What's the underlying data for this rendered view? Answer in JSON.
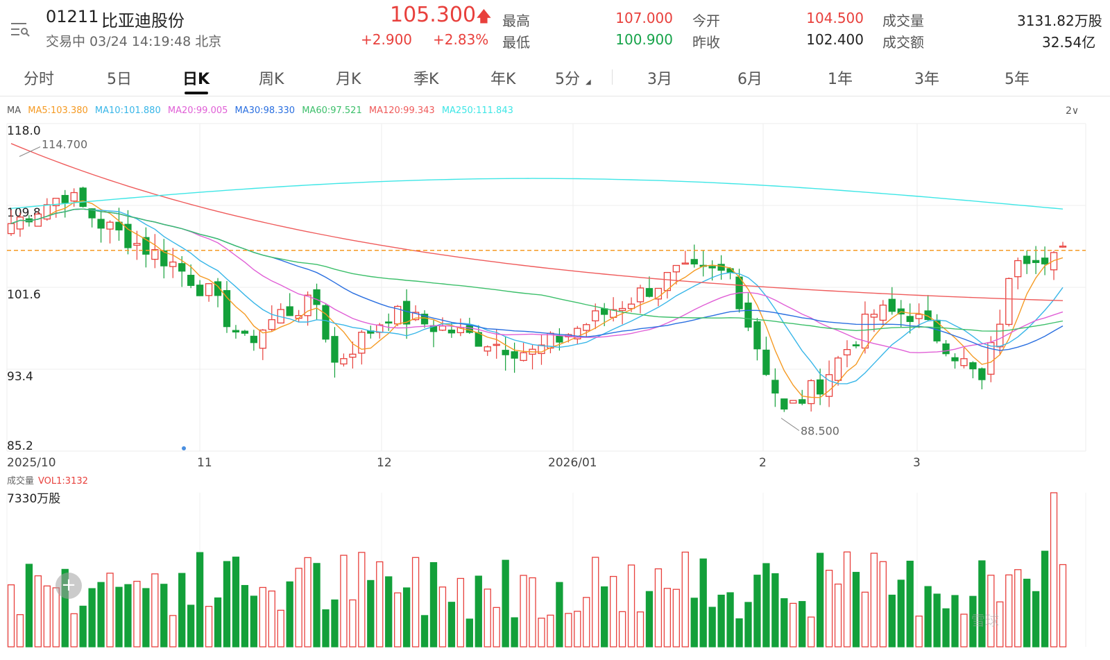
{
  "stock": {
    "code": "01211",
    "name": "比亚迪股份",
    "status": "交易中 03/24 14:19:48 北京",
    "price": "105.300",
    "change": "+2.900",
    "change_pct": "+2.83%"
  },
  "quote": {
    "high_label": "最高",
    "high": "107.000",
    "low_label": "最低",
    "low": "100.900",
    "open_label": "今开",
    "open": "104.500",
    "prev_label": "昨收",
    "prev": "102.400",
    "volume_label": "成交量",
    "volume": "3131.82万股",
    "amount_label": "成交额",
    "amount": "32.54亿"
  },
  "tabs": [
    "分时",
    "5日",
    "日K",
    "周K",
    "月K",
    "季K",
    "年K",
    "5分",
    "3月",
    "6月",
    "1年",
    "3年",
    "5年"
  ],
  "active_tab": "日K",
  "ma_legend": {
    "title": "MA",
    "items": [
      {
        "label": "MA5:103.380",
        "color": "#f59a23"
      },
      {
        "label": "MA10:101.880",
        "color": "#38b6e8"
      },
      {
        "label": "MA20:99.005",
        "color": "#e05fd6"
      },
      {
        "label": "MA30:98.330",
        "color": "#2a6fe0"
      },
      {
        "label": "MA60:97.521",
        "color": "#3cbf6a"
      },
      {
        "label": "MA120:99.343",
        "color": "#ef5b5b"
      },
      {
        "label": "MA250:111.843",
        "color": "#3ee6e6"
      }
    ],
    "settings": "2∨"
  },
  "chart_data": {
    "type": "candlestick",
    "y_axis": {
      "ticks": [
        "118.0",
        "109.8",
        "101.6",
        "93.4",
        "85.2"
      ],
      "range": [
        85.2,
        118.0
      ]
    },
    "x_axis": {
      "ticks": [
        "2025/10",
        "11",
        "12",
        "2026/01",
        "2",
        "3"
      ]
    },
    "annotations": [
      {
        "text": "114.700",
        "value": 114.7
      },
      {
        "text": "88.500",
        "value": 88.5
      }
    ],
    "current_price_line": 105.3,
    "colors": {
      "up": "#e8403c",
      "down": "#13a03a"
    },
    "volume": {
      "label": "成交量",
      "indicator": "VOL1:3132",
      "max_label": "7330万股",
      "max": 7330
    }
  },
  "watermark": "雪球"
}
